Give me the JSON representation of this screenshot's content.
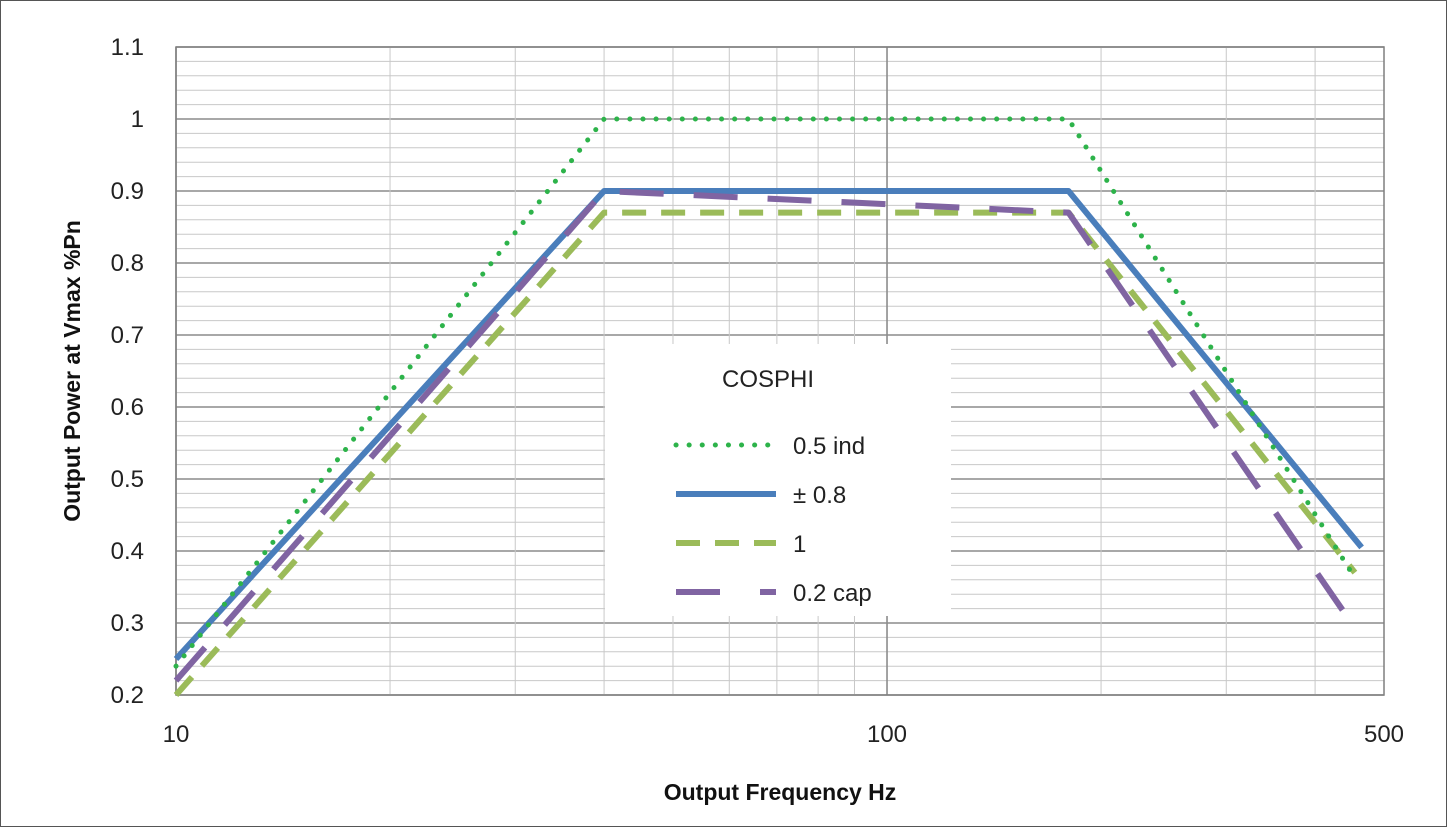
{
  "chart_data": {
    "type": "line",
    "title": "",
    "xlabel": "Output Frequency Hz",
    "ylabel": "Output Power at Vmax %Pn",
    "xscale": "log",
    "xlim": [
      10,
      500
    ],
    "ylim": [
      0.2,
      1.1
    ],
    "x_ticks": [
      10,
      100,
      500
    ],
    "x_tick_labels": [
      "10",
      "100",
      "500"
    ],
    "y_ticks": [
      0.2,
      0.3,
      0.4,
      0.5,
      0.6,
      0.7,
      0.8,
      0.9,
      1,
      1.1
    ],
    "y_tick_labels": [
      "0.2",
      "0.3",
      "0.4",
      "0.5",
      "0.6",
      "0.7",
      "0.8",
      "0.9",
      "1",
      "1.1"
    ],
    "grid": true,
    "legend": {
      "title": "COSPHI",
      "position": "center-right"
    },
    "series": [
      {
        "name": "0.5 ind",
        "color": "#2db34a",
        "style": "dotted",
        "x": [
          10,
          40,
          180,
          450
        ],
        "y": [
          0.24,
          1.0,
          1.0,
          0.37
        ]
      },
      {
        "name": "± 0.8",
        "color": "#4a7ebb",
        "style": "solid",
        "x": [
          10,
          40,
          180,
          465
        ],
        "y": [
          0.25,
          0.9,
          0.9,
          0.405
        ]
      },
      {
        "name": "1",
        "color": "#9bbb59",
        "style": "dashed",
        "x": [
          10,
          40,
          180,
          455
        ],
        "y": [
          0.2,
          0.87,
          0.87,
          0.37
        ]
      },
      {
        "name": "0.2 cap",
        "color": "#8064a2",
        "style": "long-dash",
        "x": [
          10,
          40,
          180,
          450
        ],
        "y": [
          0.22,
          0.9,
          0.87,
          0.3
        ]
      }
    ]
  }
}
